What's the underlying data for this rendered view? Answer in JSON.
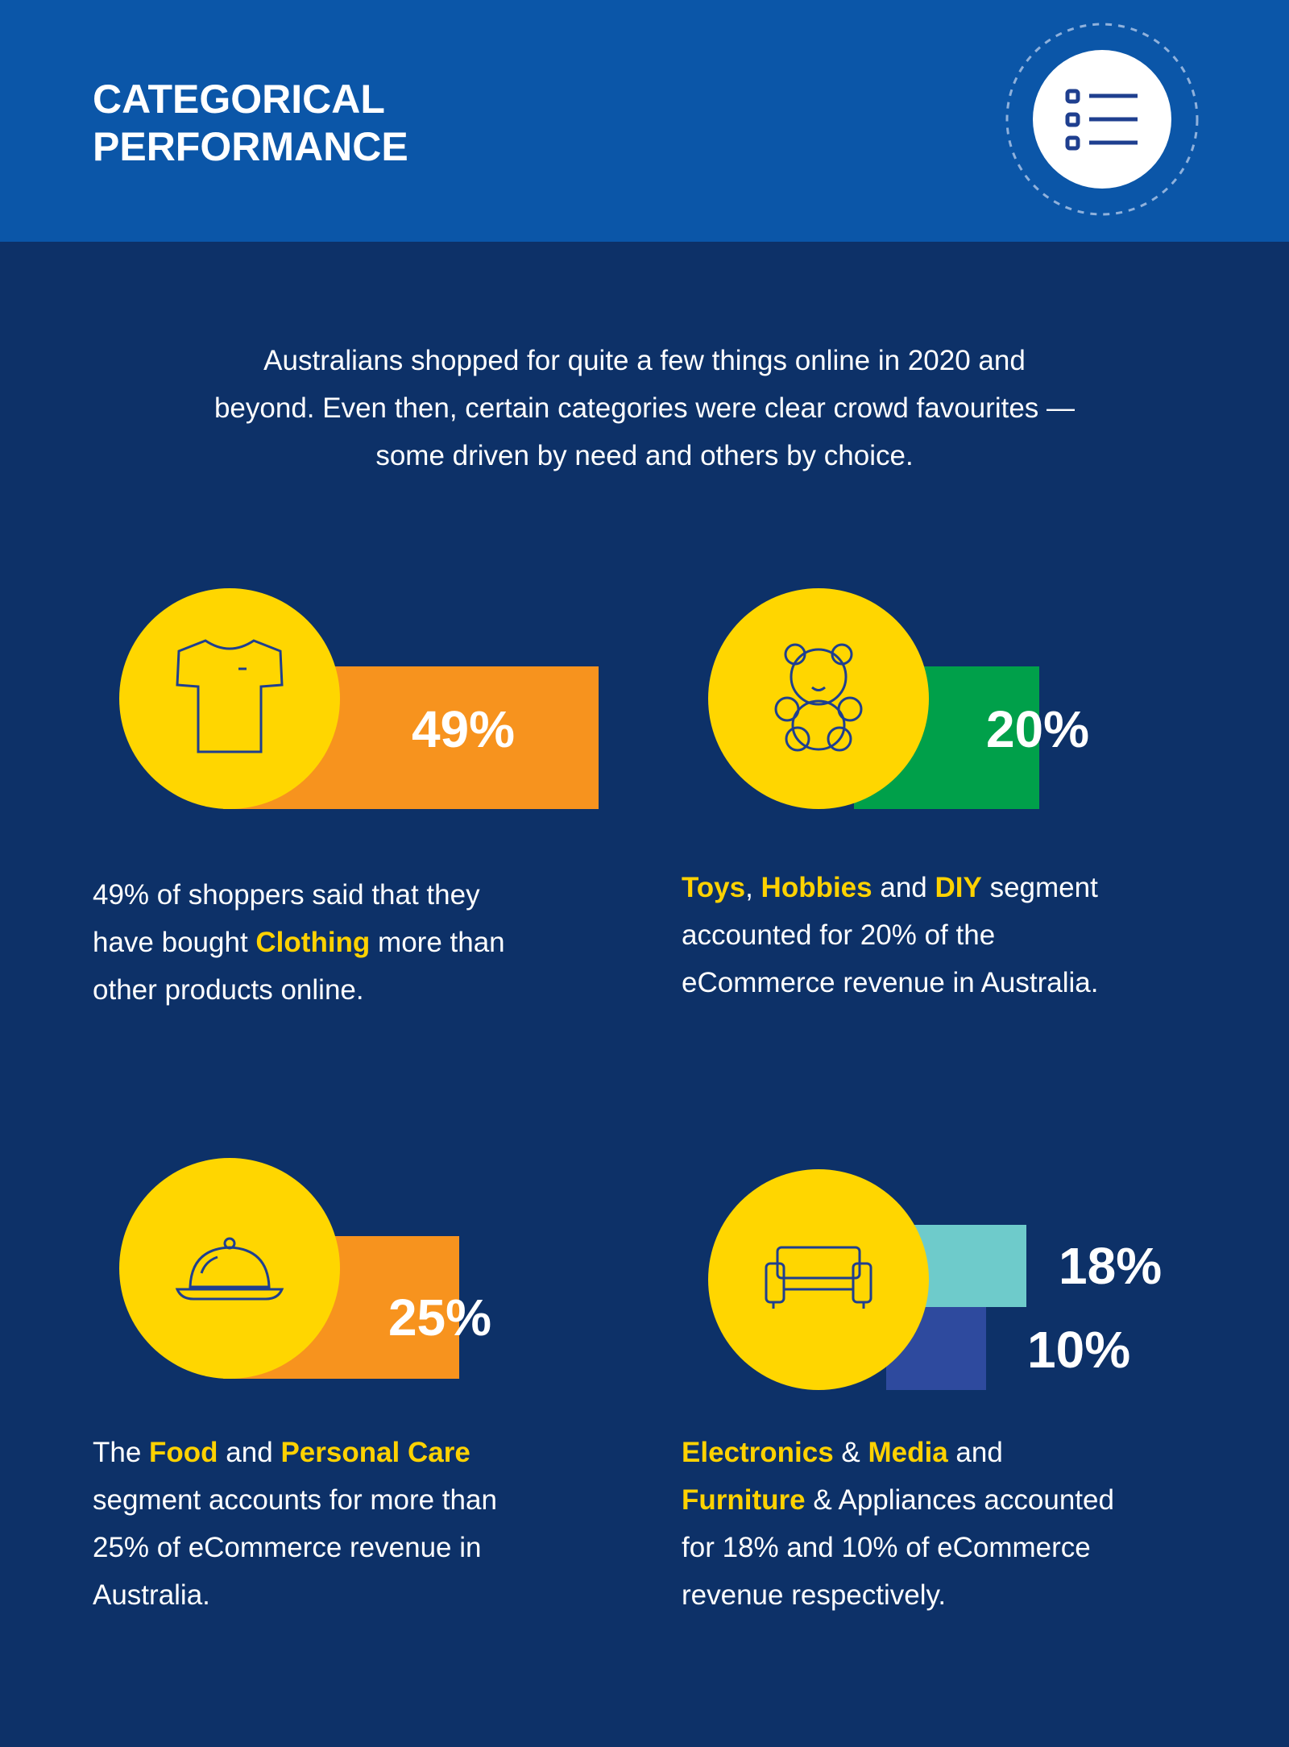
{
  "header": {
    "title": [
      "CATEGORICAL",
      "PERFORMANCE"
    ]
  },
  "intro": [
    "Australians shopped for quite a few things online in 2020 and",
    "beyond. Even then, certain categories were clear crowd favourites —",
    "some driven by need and others by choice."
  ],
  "cards": [
    {
      "stats": [
        "49%"
      ],
      "description": [
        [
          {
            "text": "49% of shoppers said that they"
          }
        ],
        [
          {
            "text": "have bought "
          },
          {
            "text": "Clothing",
            "highlight": true
          },
          {
            "text": " more than"
          }
        ],
        [
          {
            "text": "other products online."
          }
        ]
      ]
    },
    {
      "stats": [
        "20%"
      ],
      "description": [
        [
          {
            "text": "Toys",
            "highlight": true
          },
          {
            "text": ", "
          },
          {
            "text": "Hobbies",
            "highlight": true
          },
          {
            "text": " and "
          },
          {
            "text": "DIY",
            "highlight": true
          },
          {
            "text": " segment"
          }
        ],
        [
          {
            "text": "accounted for 20% of the"
          }
        ],
        [
          {
            "text": "eCommerce revenue in Australia."
          }
        ]
      ]
    },
    {
      "stats": [
        "25%"
      ],
      "description": [
        [
          {
            "text": "The "
          },
          {
            "text": "Food",
            "highlight": true
          },
          {
            "text": " and "
          },
          {
            "text": "Personal Care",
            "highlight": true
          }
        ],
        [
          {
            "text": "segment accounts for more than"
          }
        ],
        [
          {
            "text": "25% of eCommerce revenue in"
          }
        ],
        [
          {
            "text": "Australia."
          }
        ]
      ]
    },
    {
      "stats": [
        "18%",
        "10%"
      ],
      "description": [
        [
          {
            "text": "Electronics",
            "highlight": true
          },
          {
            "text": " & "
          },
          {
            "text": "Media",
            "highlight": true
          },
          {
            "text": " and"
          }
        ],
        [
          {
            "text": "Furniture",
            "highlight": true
          },
          {
            "text": " & Appliances accounted"
          }
        ],
        [
          {
            "text": "for 18% and 10% of eCommerce"
          }
        ],
        [
          {
            "text": "revenue respectively."
          }
        ]
      ]
    }
  ]
}
